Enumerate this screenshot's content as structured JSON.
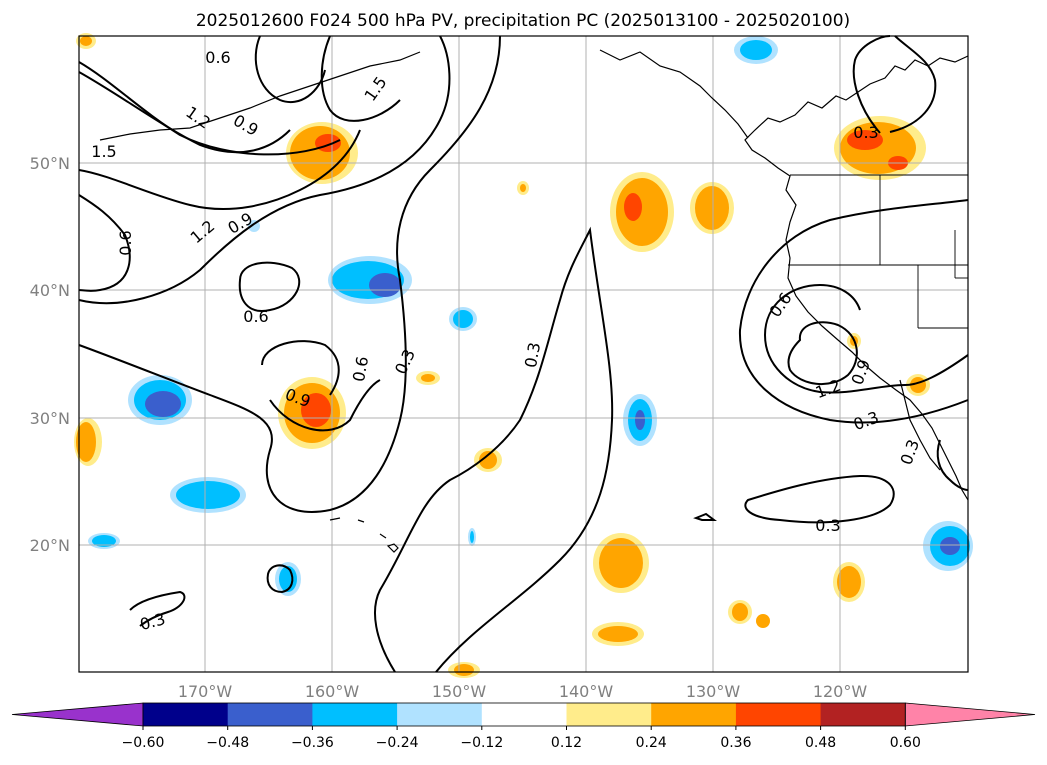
{
  "title": "2025012600 F024 500 hPa PV, precipitation PC (2025013100 - 2025020100)",
  "lon_ticks": [
    "170°W",
    "160°W",
    "150°W",
    "140°W",
    "130°W",
    "120°W"
  ],
  "lat_ticks": [
    "50°N",
    "40°N",
    "30°N",
    "20°N"
  ],
  "colorbar": {
    "tick_labels": [
      "−0.60",
      "−0.48",
      "−0.36",
      "−0.24",
      "−0.12",
      "0.12",
      "0.24",
      "0.36",
      "0.48",
      "0.60"
    ],
    "colors": [
      "#9932cc",
      "#00008b",
      "#3a5fcd",
      "#00bfff",
      "#b0e2ff",
      "#ffffff",
      "#ffec8b",
      "#ffa500",
      "#ff4500",
      "#b22222",
      "#ff83a8"
    ]
  },
  "contour_labels": {
    "l1": "0.6",
    "l2": "1.2",
    "l3": "0.9",
    "l4": "1.5",
    "l5": "1.5",
    "l6": "0.6",
    "l7": "1.2",
    "l8": "0.9",
    "l9": "0.6",
    "l10": "0.6",
    "l11": "0.3",
    "l12": "0.9",
    "l13": "0.3",
    "l14": "0.3",
    "l15": "0.6",
    "l16": "1.2",
    "l17": "0.9",
    "l18": "0.3",
    "l19": "0.3",
    "l20": "0.3",
    "l21": "0.3"
  }
}
